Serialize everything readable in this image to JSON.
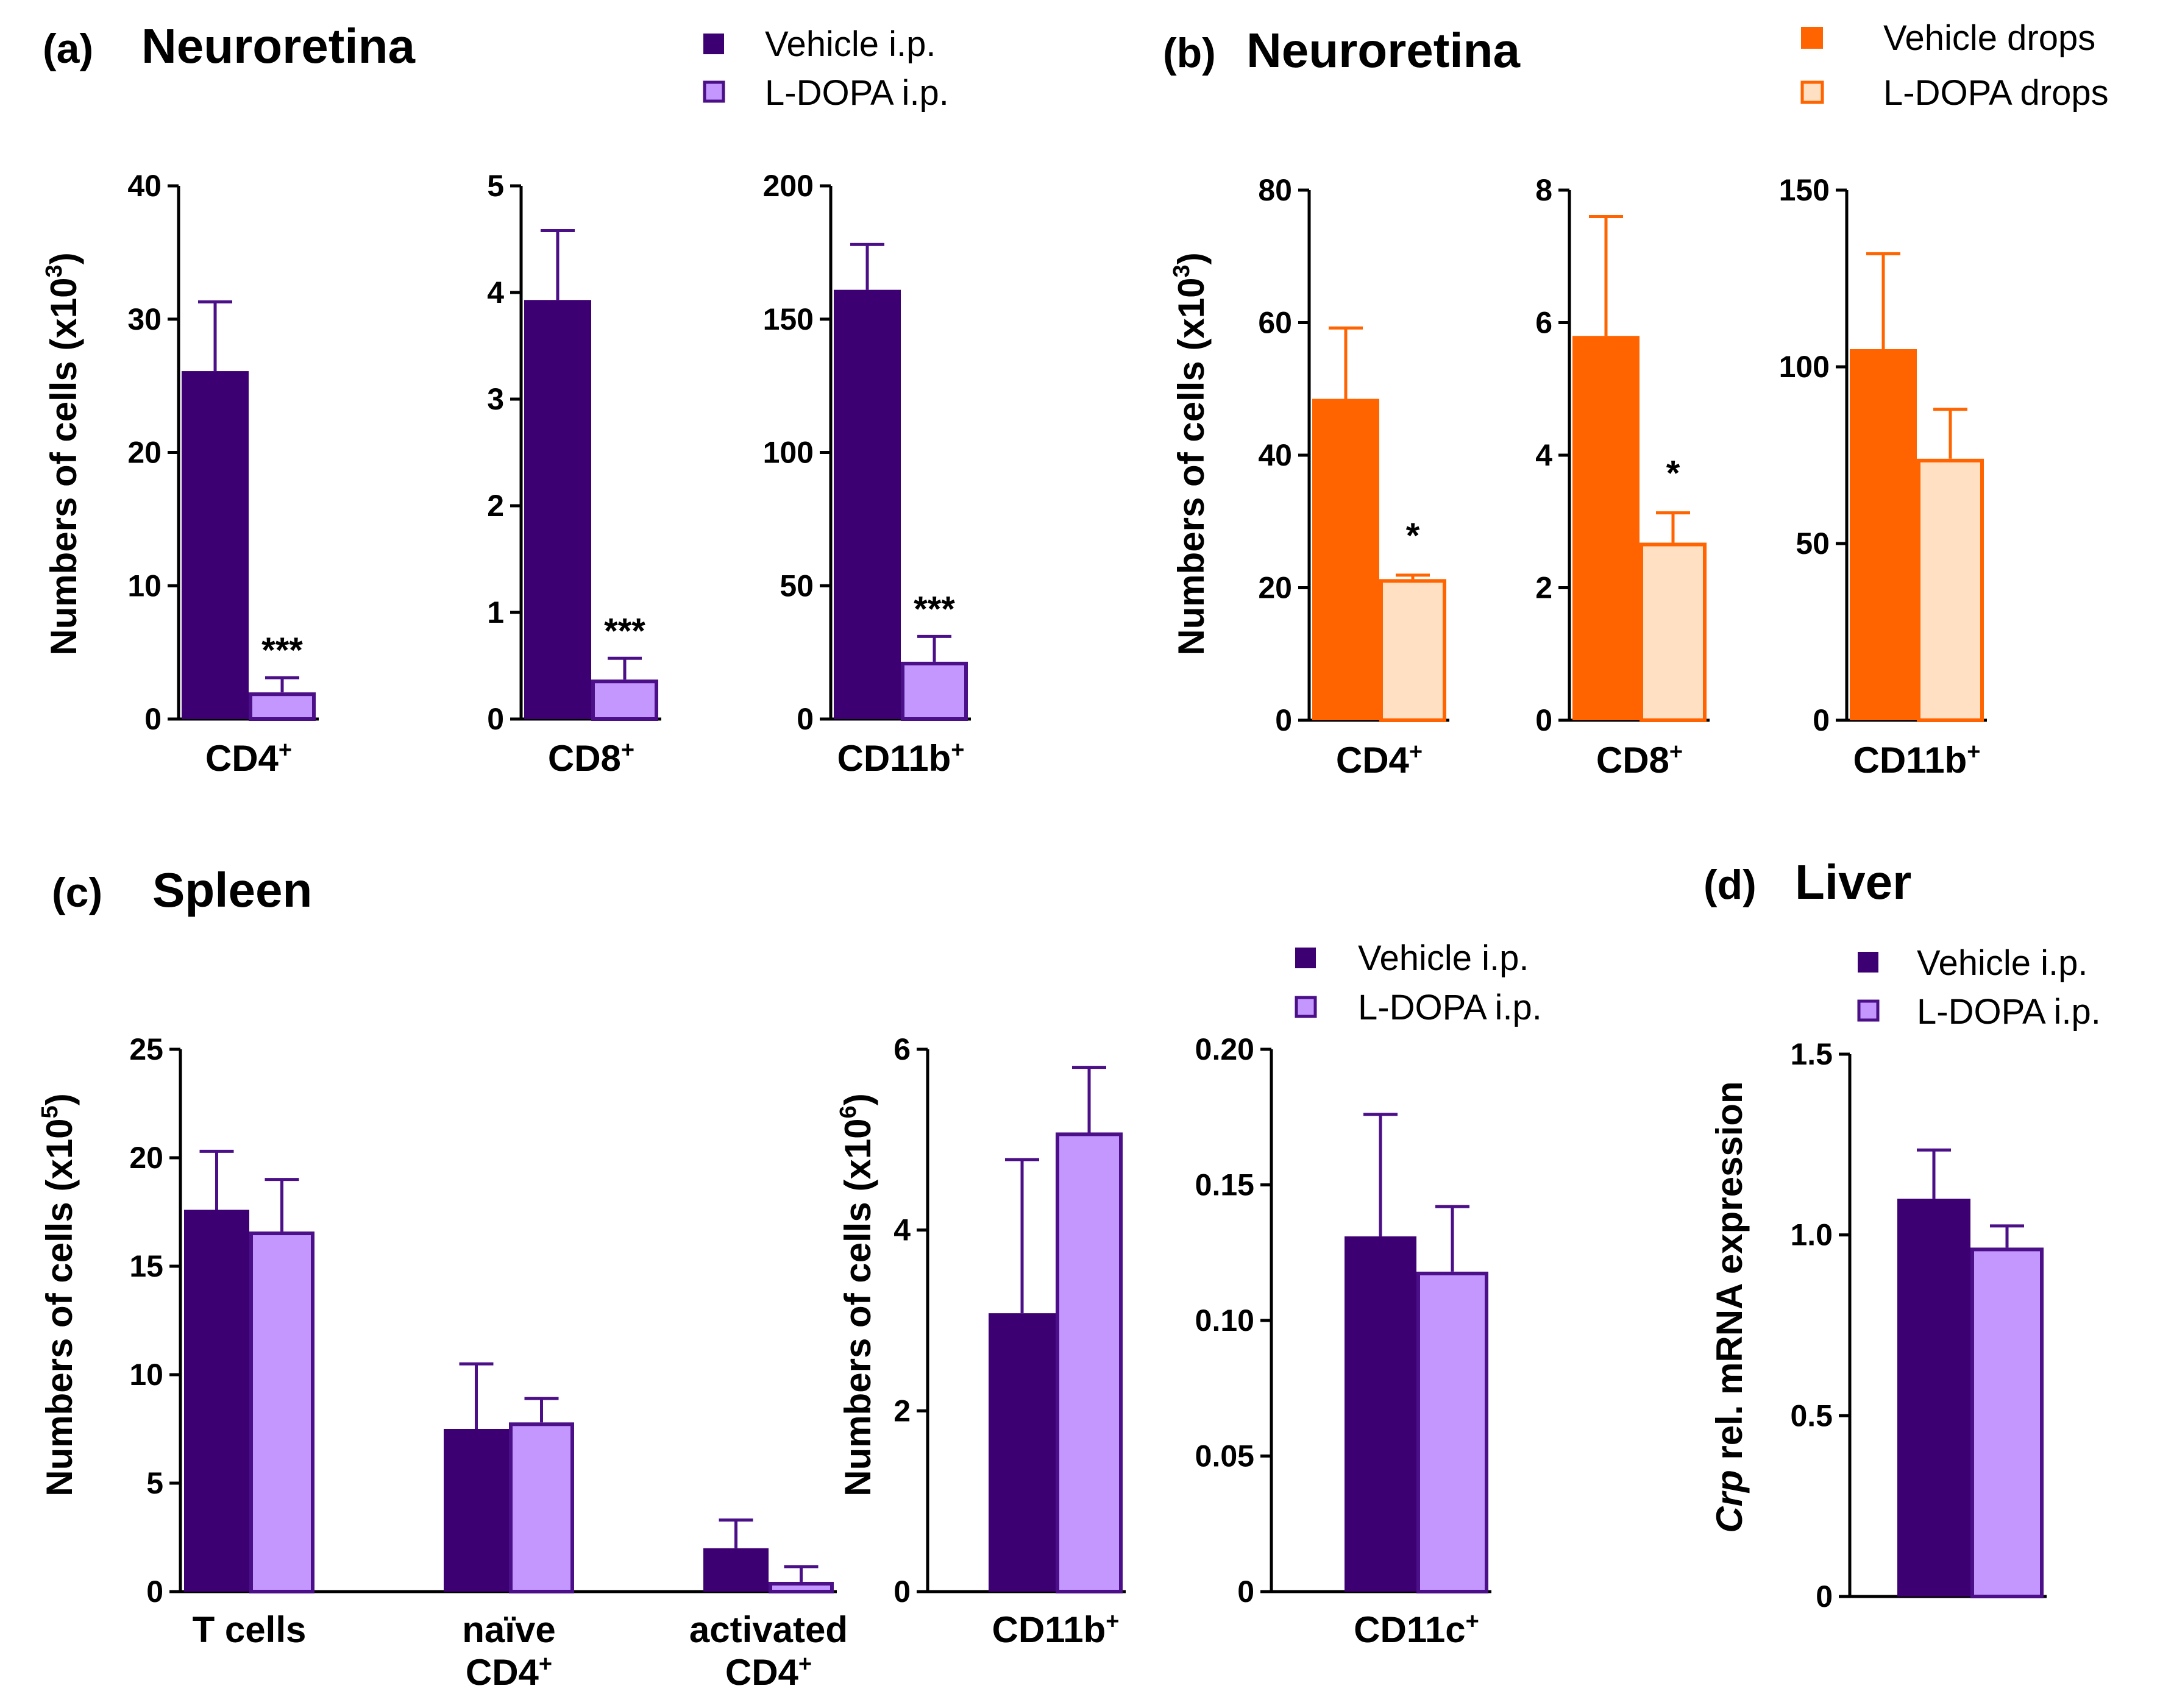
{
  "colors": {
    "vehicle_ip": "#3d0073",
    "ldopa_ip": "#c497ff",
    "ldopa_ip_edge": "#4b0f87",
    "vehicle_drops": "#ff6400",
    "ldopa_drops": "#ffe0c2",
    "ldopa_drops_edge": "#ff6400",
    "axis": "#000000"
  },
  "legends": {
    "ip": {
      "vehicle": "Vehicle i.p.",
      "ldopa": "L-DOPA i.p."
    },
    "drops": {
      "vehicle": "Vehicle drops",
      "ldopa": "L-DOPA drops"
    }
  },
  "chart_data": [
    {
      "id": "a1",
      "type": "bar",
      "panel": "(a)",
      "panel_title": "Neuroretina",
      "ylabel": "Numbers of cells (x10",
      "ylabel_exp": "3",
      "ylabel_suffix": ")",
      "ylim": [
        0,
        40
      ],
      "yticks": [
        "0",
        "10",
        "20",
        "30",
        "40"
      ],
      "series": [
        {
          "name": "Vehicle i.p.",
          "values": [
            26.1
          ],
          "errors": [
            5.2
          ]
        },
        {
          "name": "L-DOPA i.p.",
          "values": [
            2.0
          ],
          "errors": [
            1.1
          ]
        }
      ],
      "categories": [
        {
          "main": "CD4",
          "sup": "+"
        }
      ],
      "significance": [
        "***"
      ]
    },
    {
      "id": "a2",
      "type": "bar",
      "ylim": [
        0,
        5
      ],
      "yticks": [
        "0",
        "1",
        "2",
        "3",
        "4",
        "5"
      ],
      "series": [
        {
          "name": "Vehicle i.p.",
          "values": [
            3.93
          ],
          "errors": [
            0.65
          ]
        },
        {
          "name": "L-DOPA i.p.",
          "values": [
            0.37
          ],
          "errors": [
            0.2
          ]
        }
      ],
      "categories": [
        {
          "main": "CD8",
          "sup": "+"
        }
      ],
      "significance": [
        "***"
      ]
    },
    {
      "id": "a3",
      "type": "bar",
      "ylim": [
        0,
        200
      ],
      "yticks": [
        "0",
        "50",
        "100",
        "150",
        "200"
      ],
      "series": [
        {
          "name": "Vehicle i.p.",
          "values": [
            161
          ],
          "errors": [
            17
          ]
        },
        {
          "name": "L-DOPA i.p.",
          "values": [
            21.5
          ],
          "errors": [
            9.5
          ]
        }
      ],
      "categories": [
        {
          "main": "CD11b",
          "sup": "+"
        }
      ],
      "significance": [
        "***"
      ]
    },
    {
      "id": "b1",
      "type": "bar",
      "panel": "(b)",
      "panel_title": "Neuroretina",
      "ylabel": "Numbers of cells (x10",
      "ylabel_exp": "3",
      "ylabel_suffix": ")",
      "ylim": [
        0,
        80
      ],
      "yticks": [
        "0",
        "20",
        "40",
        "60",
        "80"
      ],
      "series": [
        {
          "name": "Vehicle drops",
          "values": [
            48.5
          ],
          "errors": [
            10.7
          ]
        },
        {
          "name": "L-DOPA drops",
          "values": [
            21.3
          ],
          "errors": [
            0.6
          ]
        }
      ],
      "categories": [
        {
          "main": "CD4",
          "sup": "+"
        }
      ],
      "significance": [
        "*"
      ]
    },
    {
      "id": "b2",
      "type": "bar",
      "ylim": [
        0,
        8
      ],
      "yticks": [
        "0",
        "2",
        "4",
        "6",
        "8"
      ],
      "series": [
        {
          "name": "Vehicle drops",
          "values": [
            5.8
          ],
          "errors": [
            1.8
          ]
        },
        {
          "name": "L-DOPA drops",
          "values": [
            2.68
          ],
          "errors": [
            0.45
          ]
        }
      ],
      "categories": [
        {
          "main": "CD8",
          "sup": "+"
        }
      ],
      "significance": [
        "*"
      ]
    },
    {
      "id": "b3",
      "type": "bar",
      "ylim": [
        0,
        150
      ],
      "yticks": [
        "0",
        "50",
        "100",
        "150"
      ],
      "series": [
        {
          "name": "Vehicle drops",
          "values": [
            105
          ],
          "errors": [
            27
          ]
        },
        {
          "name": "L-DOPA drops",
          "values": [
            74
          ],
          "errors": [
            14
          ]
        }
      ],
      "categories": [
        {
          "main": "CD11b",
          "sup": "+"
        }
      ],
      "significance": [
        ""
      ]
    },
    {
      "id": "c1",
      "type": "bar",
      "panel": "(c)",
      "panel_title": "Spleen",
      "ylabel": "Numbers of cells (x10",
      "ylabel_exp": "5",
      "ylabel_suffix": ")",
      "ylim": [
        0,
        25
      ],
      "yticks": [
        "0",
        "5",
        "10",
        "15",
        "20",
        "25"
      ],
      "series": [
        {
          "name": "Vehicle i.p.",
          "values": [
            17.6,
            7.5,
            2.0
          ],
          "errors": [
            2.7,
            3.0,
            1.3
          ]
        },
        {
          "name": "L-DOPA i.p.",
          "values": [
            16.6,
            7.8,
            0.45
          ],
          "errors": [
            2.4,
            1.1,
            0.7
          ]
        }
      ],
      "categories": [
        {
          "main": "T cells",
          "sup": ""
        },
        {
          "main": "naïve",
          "line2": "CD4",
          "sup": "+"
        },
        {
          "main": "activated",
          "line2": "CD4",
          "sup": "+"
        }
      ]
    },
    {
      "id": "c2",
      "type": "bar",
      "ylabel": "Numbers of cells (x10",
      "ylabel_exp": "6",
      "ylabel_suffix": ")",
      "ylim": [
        0,
        6
      ],
      "yticks": [
        "0",
        "2",
        "4",
        "6"
      ],
      "series": [
        {
          "name": "Vehicle i.p.",
          "values": [
            3.08
          ],
          "errors": [
            1.7
          ]
        },
        {
          "name": "L-DOPA i.p.",
          "values": [
            5.08
          ],
          "errors": [
            0.72
          ]
        }
      ],
      "categories": [
        {
          "main": "CD11b",
          "sup": "+"
        }
      ]
    },
    {
      "id": "c3",
      "type": "bar",
      "ylim": [
        0,
        0.2
      ],
      "yticks": [
        "0",
        "0.05",
        "0.10",
        "0.15",
        "0.20"
      ],
      "series": [
        {
          "name": "Vehicle i.p.",
          "values": [
            0.131
          ],
          "errors": [
            0.045
          ]
        },
        {
          "name": "L-DOPA i.p.",
          "values": [
            0.118
          ],
          "errors": [
            0.024
          ]
        }
      ],
      "categories": [
        {
          "main": "CD11c",
          "sup": "+"
        }
      ]
    },
    {
      "id": "d1",
      "type": "bar",
      "panel": "(d)",
      "panel_title": "Liver",
      "ylabel_italic": "Crp",
      "ylabel": " rel. mRNA expression",
      "ylim": [
        0,
        1.5
      ],
      "yticks": [
        "0",
        "0.5",
        "1.0",
        "1.5"
      ],
      "series": [
        {
          "name": "Vehicle i.p.",
          "values": [
            1.1
          ],
          "errors": [
            0.135
          ]
        },
        {
          "name": "L-DOPA i.p.",
          "values": [
            0.965
          ],
          "errors": [
            0.06
          ]
        }
      ],
      "categories": [
        {
          "main": "",
          "sup": ""
        }
      ]
    }
  ]
}
